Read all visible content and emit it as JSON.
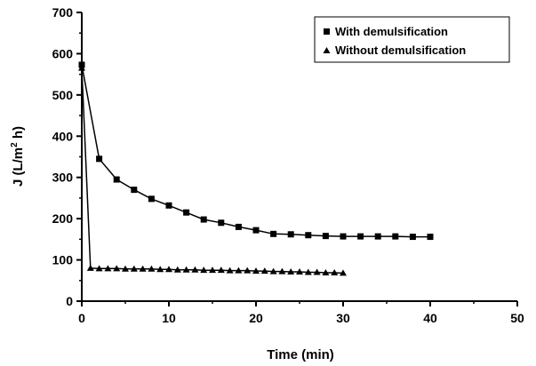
{
  "chart_data": {
    "type": "line",
    "xlabel": "Time (min)",
    "ylabel": {
      "prefix": "J (L/m",
      "sup": "2",
      "suffix": " h)"
    },
    "xlim": [
      0,
      50
    ],
    "ylim": [
      0,
      700
    ],
    "xticks": [
      "0",
      "10",
      "20",
      "30",
      "40",
      "50"
    ],
    "yticks": [
      "0",
      "100",
      "200",
      "300",
      "400",
      "500",
      "600",
      "700"
    ],
    "grid": false,
    "legend_position": "top-right",
    "series": [
      {
        "name": "With demulsification",
        "marker": "square",
        "x": [
          0,
          2,
          4,
          6,
          8,
          10,
          12,
          14,
          16,
          18,
          20,
          22,
          24,
          26,
          28,
          30,
          32,
          34,
          36,
          38,
          40
        ],
        "y": [
          573,
          345,
          295,
          270,
          248,
          232,
          215,
          198,
          190,
          180,
          172,
          163,
          162,
          160,
          158,
          157,
          157,
          157,
          157,
          156,
          156
        ]
      },
      {
        "name": "Without demulsification",
        "marker": "triangle",
        "x": [
          0,
          1,
          2,
          3,
          4,
          5,
          6,
          7,
          8,
          9,
          10,
          11,
          12,
          13,
          14,
          15,
          16,
          17,
          18,
          19,
          20,
          21,
          22,
          23,
          24,
          25,
          26,
          27,
          28,
          29,
          30
        ],
        "y": [
          565,
          80,
          79,
          79,
          79,
          78,
          78,
          78,
          78,
          77,
          77,
          76,
          76,
          76,
          75,
          75,
          75,
          74,
          74,
          74,
          73,
          73,
          72,
          72,
          71,
          71,
          70,
          70,
          69,
          69,
          68
        ]
      }
    ]
  }
}
